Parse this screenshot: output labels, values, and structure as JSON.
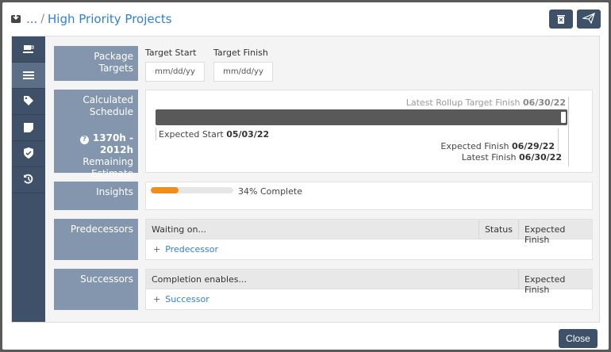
{
  "header": {
    "breadcrumb_ellipsis": "...",
    "separator": "/",
    "title": "High Priority Projects",
    "delete_button": "trash-icon",
    "send_button": "send-icon"
  },
  "sidebar": {
    "items": [
      {
        "icon": "coffee-icon"
      },
      {
        "icon": "list-icon",
        "active": true
      },
      {
        "icon": "tag-icon"
      },
      {
        "icon": "note-icon"
      },
      {
        "icon": "shield-check-icon"
      },
      {
        "icon": "history-icon"
      }
    ]
  },
  "package_targets": {
    "label": "Package Targets",
    "target_start_label": "Target Start",
    "target_start_placeholder": "mm/dd/yy",
    "target_finish_label": "Target Finish",
    "target_finish_placeholder": "mm/dd/yy"
  },
  "schedule": {
    "label_line1": "Calculated",
    "label_line2": "Schedule",
    "estimate": "1370h - 2012h",
    "estimate_line2": "Remaining",
    "estimate_line3": "Estimate",
    "rollup_label": "Latest Rollup Target Finish",
    "rollup_date": "06/30/22",
    "start_label": "Expected Start",
    "start_date": "05/03/22",
    "exp_finish_label": "Expected Finish",
    "exp_finish_date": "06/29/22",
    "latest_finish_label": "Latest Finish",
    "latest_finish_date": "06/30/22",
    "bar_color": "#595959"
  },
  "insights": {
    "label": "Insights",
    "progress_percent": 34,
    "progress_text": "34% Complete",
    "progress_color": "#f28c1e"
  },
  "predecessors": {
    "label": "Predecessors",
    "columns": [
      "Waiting on...",
      "Status",
      "Expected Finish"
    ],
    "add_label": "Predecessor"
  },
  "successors": {
    "label": "Successors",
    "columns": [
      "Completion enables...",
      "Expected Finish"
    ],
    "add_label": "Successor"
  },
  "footer": {
    "close_label": "Close"
  }
}
